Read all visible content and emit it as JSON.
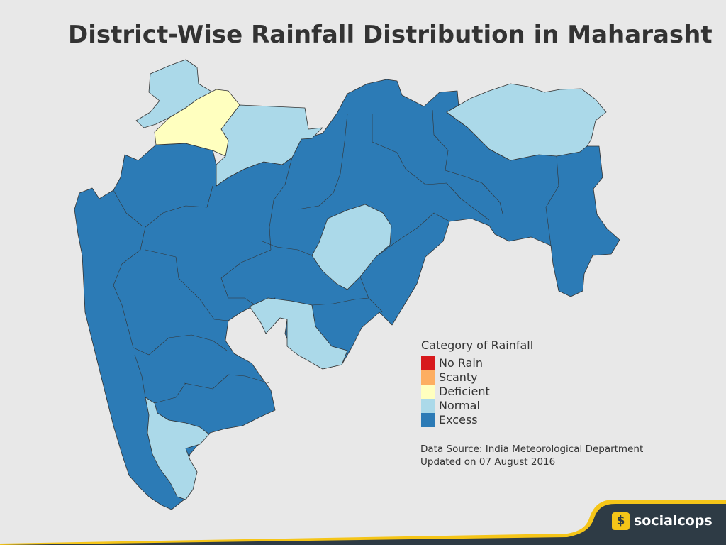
{
  "title": "District-Wise Rainfall Distribution in Maharasht",
  "legend": {
    "title": "Category of Rainfall",
    "items": [
      {
        "label": "No Rain",
        "color": "#d7191c"
      },
      {
        "label": "Scanty",
        "color": "#fdae61"
      },
      {
        "label": "Deficient",
        "color": "#ffffbf"
      },
      {
        "label": "Normal",
        "color": "#abd9e9"
      },
      {
        "label": "Excess",
        "color": "#2c7bb6"
      }
    ]
  },
  "source": {
    "line1": "Data Source: India Meteorological Department",
    "line2": "Updated on 07 August 2016"
  },
  "brand": {
    "icon_letter": "$",
    "name": "socialcops"
  },
  "colors": {
    "background": "#e8e8e8",
    "footer": "#2e3b45",
    "accent": "#f5c518"
  }
}
